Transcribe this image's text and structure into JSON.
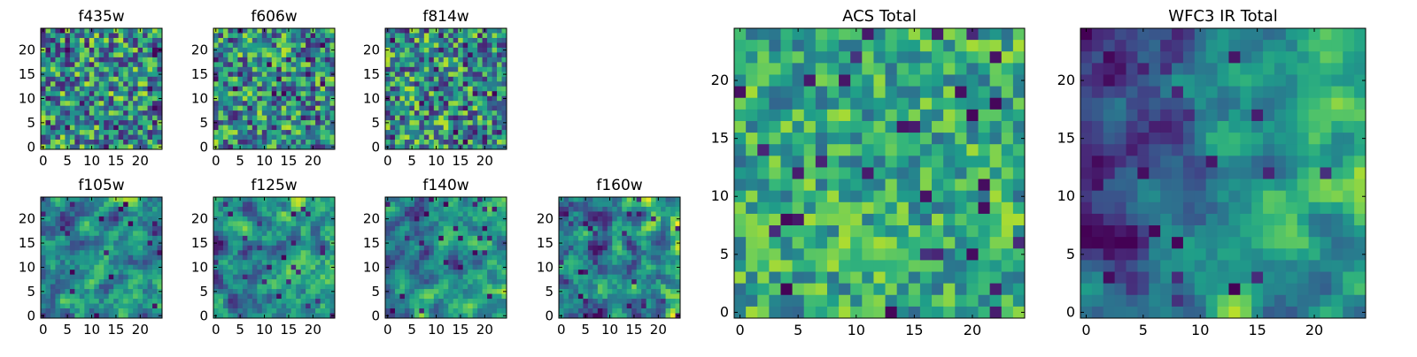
{
  "chart_data": [
    {
      "type": "heatmap",
      "title": "f435w",
      "grid_size": 25,
      "xlim": [
        0,
        25
      ],
      "ylim": [
        0,
        25
      ],
      "xticks": [
        0,
        5,
        10,
        15,
        20
      ],
      "yticks": [
        0,
        5,
        10,
        15,
        20
      ],
      "colormap": "viridis",
      "value_range": [
        0,
        1
      ],
      "field": {
        "seed": 435,
        "smooth": 0.1,
        "trend": 0.0,
        "contrast": 0.8,
        "dark_fraction": 0.06
      }
    },
    {
      "type": "heatmap",
      "title": "f606w",
      "grid_size": 25,
      "xlim": [
        0,
        25
      ],
      "ylim": [
        0,
        25
      ],
      "xticks": [
        0,
        5,
        10,
        15,
        20
      ],
      "yticks": [
        0,
        5,
        10,
        15,
        20
      ],
      "colormap": "viridis",
      "value_range": [
        0,
        1
      ],
      "field": {
        "seed": 606,
        "smooth": 0.1,
        "trend": 0.0,
        "contrast": 0.8,
        "dark_fraction": 0.06
      }
    },
    {
      "type": "heatmap",
      "title": "f814w",
      "grid_size": 25,
      "xlim": [
        0,
        25
      ],
      "ylim": [
        0,
        25
      ],
      "xticks": [
        0,
        5,
        10,
        15,
        20
      ],
      "yticks": [
        0,
        5,
        10,
        15,
        20
      ],
      "colormap": "viridis",
      "value_range": [
        0,
        1
      ],
      "field": {
        "seed": 814,
        "smooth": 0.1,
        "trend": 0.0,
        "contrast": 0.8,
        "dark_fraction": 0.06
      }
    },
    {
      "type": "heatmap",
      "title": "f105w",
      "grid_size": 25,
      "xlim": [
        0,
        25
      ],
      "ylim": [
        0,
        25
      ],
      "xticks": [
        0,
        5,
        10,
        15,
        20
      ],
      "yticks": [
        0,
        5,
        10,
        15,
        20
      ],
      "colormap": "viridis",
      "value_range": [
        0,
        1
      ],
      "field": {
        "seed": 105,
        "smooth": 0.55,
        "trend": 0.1,
        "contrast": 0.75,
        "dark_fraction": 0.03
      }
    },
    {
      "type": "heatmap",
      "title": "f125w",
      "grid_size": 25,
      "xlim": [
        0,
        25
      ],
      "ylim": [
        0,
        25
      ],
      "xticks": [
        0,
        5,
        10,
        15,
        20
      ],
      "yticks": [
        0,
        5,
        10,
        15,
        20
      ],
      "colormap": "viridis",
      "value_range": [
        0,
        1
      ],
      "field": {
        "seed": 125,
        "smooth": 0.55,
        "trend": 0.15,
        "contrast": 0.8,
        "dark_fraction": 0.04
      }
    },
    {
      "type": "heatmap",
      "title": "f140w",
      "grid_size": 25,
      "xlim": [
        0,
        25
      ],
      "ylim": [
        0,
        25
      ],
      "xticks": [
        0,
        5,
        10,
        15,
        20
      ],
      "yticks": [
        0,
        5,
        10,
        15,
        20
      ],
      "colormap": "viridis",
      "value_range": [
        0,
        1
      ],
      "field": {
        "seed": 140,
        "smooth": 0.6,
        "trend": 0.25,
        "contrast": 0.8,
        "dark_fraction": 0.04
      }
    },
    {
      "type": "heatmap",
      "title": "f160w",
      "grid_size": 25,
      "xlim": [
        0,
        25
      ],
      "ylim": [
        0,
        25
      ],
      "xticks": [
        0,
        5,
        10,
        15,
        20
      ],
      "yticks": [
        0,
        5,
        10,
        15,
        20
      ],
      "colormap": "viridis",
      "value_range": [
        0,
        1
      ],
      "field": {
        "seed": 160,
        "smooth": 0.6,
        "trend": 0.35,
        "contrast": 0.85,
        "dark_fraction": 0.04
      }
    },
    {
      "type": "heatmap",
      "title": "ACS Total",
      "grid_size": 25,
      "xlim": [
        0,
        25
      ],
      "ylim": [
        0,
        25
      ],
      "xticks": [
        0,
        5,
        10,
        15,
        20
      ],
      "yticks": [
        0,
        5,
        10,
        15,
        20
      ],
      "colormap": "viridis",
      "value_range": [
        0,
        1
      ],
      "field": {
        "seed": 777,
        "smooth": 0.15,
        "trend": 0.0,
        "contrast": 0.55,
        "bias": 0.2,
        "dark_fraction": 0.05
      }
    },
    {
      "type": "heatmap",
      "title": "WFC3 IR Total",
      "grid_size": 25,
      "xlim": [
        0,
        25
      ],
      "ylim": [
        0,
        25
      ],
      "xticks": [
        0,
        5,
        10,
        15,
        20
      ],
      "yticks": [
        0,
        5,
        10,
        15,
        20
      ],
      "colormap": "viridis",
      "value_range": [
        0,
        1
      ],
      "field": {
        "seed": 333,
        "smooth": 0.65,
        "trend": 0.45,
        "contrast": 0.75,
        "dark_fraction": 0.03
      }
    }
  ]
}
